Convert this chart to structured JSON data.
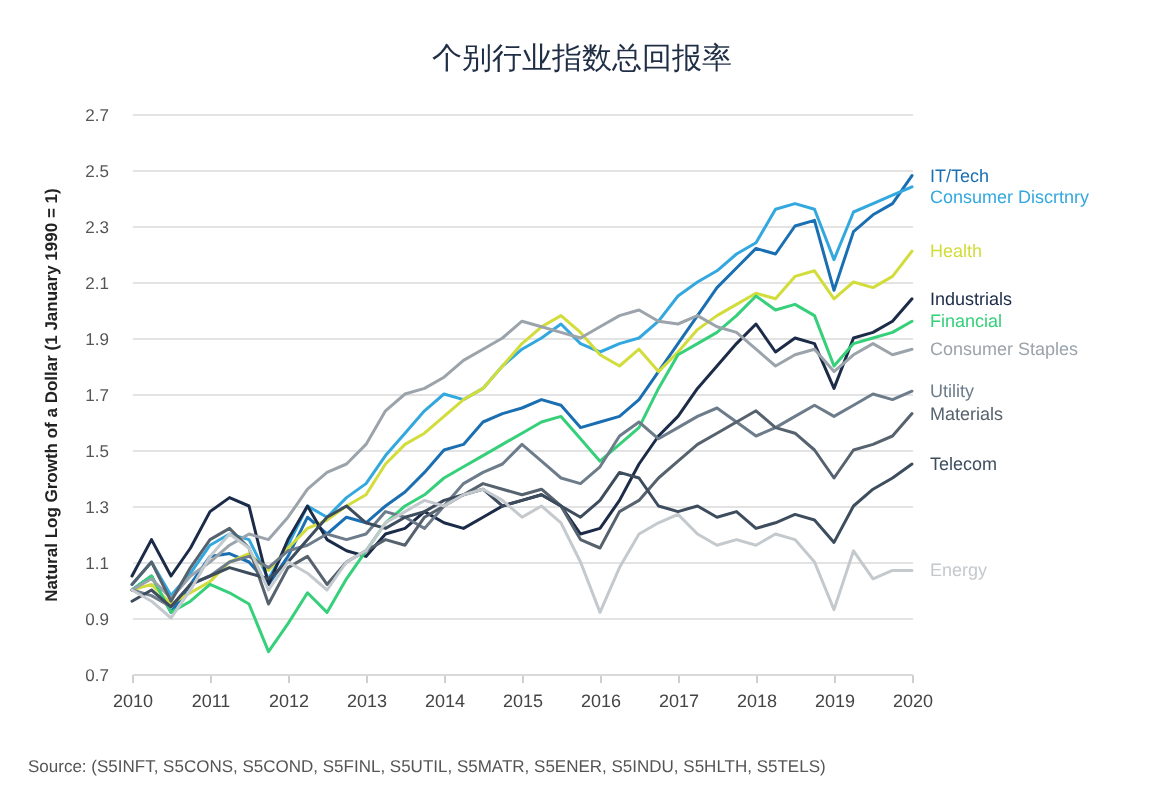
{
  "chart_data": {
    "type": "line",
    "title": "个别行业指数总回报率",
    "ylabel": "Natural Log Growth of a Dollar (1 January 1990 = 1)",
    "annotations": [
      "Source: (S5INFT, S5CONS, S5COND, S5FINL, S5UTIL, S5MATR, S5ENER, S5INDU, S5HLTH, S5TELS)"
    ],
    "x": [
      2010,
      2010.25,
      2010.5,
      2010.75,
      2011,
      2011.25,
      2011.5,
      2011.75,
      2012,
      2012.25,
      2012.5,
      2012.75,
      2013,
      2013.25,
      2013.5,
      2013.75,
      2014,
      2014.25,
      2014.5,
      2014.75,
      2015,
      2015.25,
      2015.5,
      2015.75,
      2016,
      2016.25,
      2016.5,
      2016.75,
      2017,
      2017.25,
      2017.5,
      2017.75,
      2018,
      2018.25,
      2018.5,
      2018.75,
      2019,
      2019.25,
      2019.5,
      2019.75,
      2020
    ],
    "xlim": [
      2010,
      2020
    ],
    "xticks": [
      2010,
      2011,
      2012,
      2013,
      2014,
      2015,
      2016,
      2017,
      2018,
      2019,
      2020
    ],
    "ylim": [
      0.7,
      2.7
    ],
    "yticks": [
      0.7,
      0.9,
      1.1,
      1.3,
      1.5,
      1.7,
      1.9,
      2.1,
      2.3,
      2.5,
      2.7
    ],
    "grid": "y",
    "series": [
      {
        "name": "IT/Tech",
        "color": "#1a6fb3",
        "values": [
          1.0,
          1.05,
          0.92,
          1.02,
          1.12,
          1.13,
          1.1,
          1.02,
          1.12,
          1.26,
          1.2,
          1.26,
          1.24,
          1.3,
          1.35,
          1.42,
          1.5,
          1.52,
          1.6,
          1.63,
          1.65,
          1.68,
          1.66,
          1.58,
          1.6,
          1.62,
          1.68,
          1.78,
          1.88,
          1.98,
          2.08,
          2.15,
          2.22,
          2.2,
          2.3,
          2.32,
          2.07,
          2.28,
          2.34,
          2.38,
          2.48
        ]
      },
      {
        "name": "Consumer Discrtnry",
        "color": "#33a8de",
        "values": [
          1.02,
          1.1,
          0.98,
          1.06,
          1.16,
          1.2,
          1.18,
          1.04,
          1.16,
          1.3,
          1.26,
          1.33,
          1.38,
          1.48,
          1.56,
          1.64,
          1.7,
          1.68,
          1.72,
          1.8,
          1.86,
          1.9,
          1.95,
          1.88,
          1.85,
          1.88,
          1.9,
          1.96,
          2.05,
          2.1,
          2.14,
          2.2,
          2.24,
          2.36,
          2.38,
          2.36,
          2.18,
          2.35,
          2.38,
          2.41,
          2.44
        ]
      },
      {
        "name": "Health",
        "color": "#d2dc3a",
        "values": [
          1.0,
          1.02,
          0.95,
          0.99,
          1.03,
          1.1,
          1.13,
          1.07,
          1.15,
          1.22,
          1.25,
          1.3,
          1.34,
          1.45,
          1.52,
          1.56,
          1.62,
          1.68,
          1.72,
          1.8,
          1.88,
          1.94,
          1.98,
          1.92,
          1.84,
          1.8,
          1.86,
          1.78,
          1.85,
          1.93,
          1.98,
          2.02,
          2.06,
          2.04,
          2.12,
          2.14,
          2.04,
          2.1,
          2.08,
          2.12,
          2.21
        ]
      },
      {
        "name": "Industrials",
        "color": "#1b2b48",
        "values": [
          1.05,
          1.18,
          1.05,
          1.15,
          1.28,
          1.33,
          1.3,
          1.02,
          1.18,
          1.3,
          1.18,
          1.14,
          1.12,
          1.2,
          1.22,
          1.28,
          1.24,
          1.22,
          1.26,
          1.3,
          1.32,
          1.34,
          1.3,
          1.2,
          1.22,
          1.32,
          1.45,
          1.55,
          1.62,
          1.72,
          1.8,
          1.88,
          1.95,
          1.85,
          1.9,
          1.88,
          1.72,
          1.9,
          1.92,
          1.96,
          2.04
        ]
      },
      {
        "name": "Financial",
        "color": "#36cf7a",
        "values": [
          1.0,
          1.05,
          0.92,
          0.96,
          1.02,
          0.99,
          0.95,
          0.78,
          0.88,
          0.99,
          0.92,
          1.04,
          1.14,
          1.24,
          1.3,
          1.34,
          1.4,
          1.44,
          1.48,
          1.52,
          1.56,
          1.6,
          1.62,
          1.54,
          1.46,
          1.52,
          1.58,
          1.72,
          1.84,
          1.88,
          1.92,
          1.98,
          2.05,
          2.0,
          2.02,
          1.98,
          1.8,
          1.88,
          1.9,
          1.92,
          1.96
        ]
      },
      {
        "name": "Consumer Staples",
        "color": "#9ba3ab",
        "values": [
          1.0,
          1.04,
          0.97,
          1.05,
          1.1,
          1.16,
          1.2,
          1.18,
          1.26,
          1.36,
          1.42,
          1.45,
          1.52,
          1.64,
          1.7,
          1.72,
          1.76,
          1.82,
          1.86,
          1.9,
          1.96,
          1.94,
          1.92,
          1.9,
          1.94,
          1.98,
          2.0,
          1.96,
          1.95,
          1.98,
          1.94,
          1.92,
          1.86,
          1.8,
          1.84,
          1.86,
          1.78,
          1.84,
          1.88,
          1.84,
          1.86
        ]
      },
      {
        "name": "Utility",
        "color": "#6d7c8a",
        "values": [
          1.0,
          0.98,
          0.94,
          1.02,
          1.05,
          1.1,
          1.12,
          1.08,
          1.14,
          1.16,
          1.2,
          1.18,
          1.2,
          1.28,
          1.26,
          1.22,
          1.3,
          1.38,
          1.42,
          1.45,
          1.52,
          1.46,
          1.4,
          1.38,
          1.44,
          1.55,
          1.6,
          1.54,
          1.58,
          1.62,
          1.65,
          1.6,
          1.55,
          1.58,
          1.62,
          1.66,
          1.62,
          1.66,
          1.7,
          1.68,
          1.71
        ]
      },
      {
        "name": "Materials",
        "color": "#56626e",
        "values": [
          1.02,
          1.1,
          0.96,
          1.08,
          1.18,
          1.22,
          1.15,
          0.95,
          1.08,
          1.12,
          1.02,
          1.1,
          1.14,
          1.18,
          1.16,
          1.26,
          1.3,
          1.34,
          1.38,
          1.36,
          1.34,
          1.36,
          1.3,
          1.18,
          1.15,
          1.28,
          1.32,
          1.4,
          1.46,
          1.52,
          1.56,
          1.6,
          1.64,
          1.58,
          1.56,
          1.5,
          1.4,
          1.5,
          1.52,
          1.55,
          1.63
        ]
      },
      {
        "name": "Telecom",
        "color": "#3e4d5d",
        "values": [
          0.96,
          1.0,
          0.94,
          1.02,
          1.05,
          1.08,
          1.06,
          1.04,
          1.1,
          1.18,
          1.26,
          1.3,
          1.24,
          1.22,
          1.26,
          1.28,
          1.32,
          1.34,
          1.36,
          1.3,
          1.32,
          1.34,
          1.3,
          1.26,
          1.32,
          1.42,
          1.4,
          1.3,
          1.28,
          1.3,
          1.26,
          1.28,
          1.22,
          1.24,
          1.27,
          1.25,
          1.17,
          1.3,
          1.36,
          1.4,
          1.45
        ]
      },
      {
        "name": "Energy",
        "color": "#c4c9cd",
        "values": [
          1.0,
          0.96,
          0.9,
          1.0,
          1.12,
          1.2,
          1.15,
          1.0,
          1.1,
          1.06,
          1.0,
          1.1,
          1.14,
          1.24,
          1.28,
          1.32,
          1.3,
          1.34,
          1.36,
          1.32,
          1.26,
          1.3,
          1.24,
          1.1,
          0.92,
          1.08,
          1.2,
          1.24,
          1.27,
          1.2,
          1.16,
          1.18,
          1.16,
          1.2,
          1.18,
          1.1,
          0.93,
          1.14,
          1.04,
          1.07,
          1.07
        ]
      }
    ]
  }
}
